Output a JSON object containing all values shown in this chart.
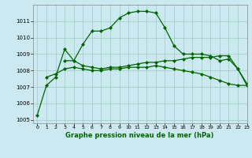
{
  "title": "Graphe pression niveau de la mer (hPa)",
  "background_color": "#cce8f0",
  "grid_color": "#99ccbb",
  "line_color": "#006600",
  "xlim": [
    -0.5,
    23
  ],
  "ylim": [
    1004.8,
    1012.0
  ],
  "yticks": [
    1005,
    1006,
    1007,
    1008,
    1009,
    1010,
    1011
  ],
  "xticks": [
    0,
    1,
    2,
    3,
    4,
    5,
    6,
    7,
    8,
    9,
    10,
    11,
    12,
    13,
    14,
    15,
    16,
    17,
    18,
    19,
    20,
    21,
    22,
    23
  ],
  "series1_x": [
    0,
    1,
    2,
    3,
    4,
    5,
    6,
    7,
    8,
    9,
    10,
    11,
    12,
    13,
    14,
    15,
    16,
    17,
    18,
    19,
    20,
    21,
    22,
    23
  ],
  "series1_y": [
    1005.3,
    1007.1,
    1007.6,
    1009.3,
    1008.6,
    1009.6,
    1010.4,
    1010.4,
    1010.6,
    1011.2,
    1011.5,
    1011.6,
    1011.6,
    1011.5,
    1010.6,
    1009.5,
    1009.0,
    1009.0,
    1009.0,
    1008.9,
    1008.6,
    1008.7,
    1008.1,
    1007.1
  ],
  "series2_x": [
    1,
    2,
    3,
    4,
    5,
    6,
    7,
    8,
    9,
    10,
    11,
    12,
    13,
    14,
    15,
    16,
    17,
    18,
    19,
    20,
    21,
    22,
    23
  ],
  "series2_y": [
    1007.6,
    1007.8,
    1008.1,
    1008.2,
    1008.1,
    1008.0,
    1008.0,
    1008.1,
    1008.1,
    1008.2,
    1008.2,
    1008.2,
    1008.3,
    1008.2,
    1008.1,
    1008.0,
    1007.9,
    1007.8,
    1007.6,
    1007.4,
    1007.2,
    1007.1,
    1007.1
  ],
  "series3_x": [
    3,
    4,
    5,
    6,
    7,
    8,
    9,
    10,
    11,
    12,
    13,
    14,
    15,
    16,
    17,
    18,
    19,
    20,
    21,
    22,
    23
  ],
  "series3_y": [
    1008.6,
    1008.6,
    1008.3,
    1008.2,
    1008.1,
    1008.2,
    1008.2,
    1008.3,
    1008.4,
    1008.5,
    1008.5,
    1008.6,
    1008.6,
    1008.7,
    1008.8,
    1008.8,
    1008.8,
    1008.9,
    1008.9,
    1008.1,
    1007.2
  ]
}
